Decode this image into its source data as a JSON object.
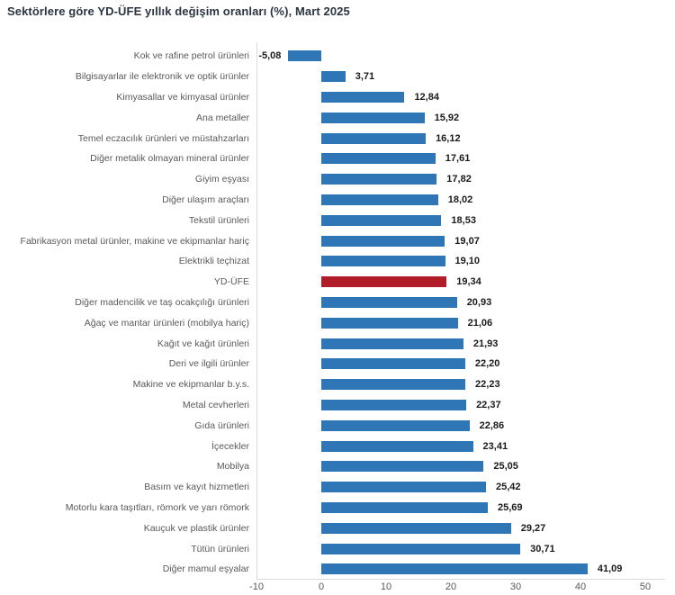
{
  "title": "Sektörlere göre YD-ÜFE yıllık değişim oranları (%), Mart 2025",
  "colors": {
    "bar_blue": "#2E76B5",
    "bar_red": "#B01C28",
    "axis_line": "#D9D9D9",
    "category_text": "#595959",
    "value_text": "#1A1A1A",
    "title_text": "#2B3440"
  },
  "chart_data": {
    "type": "bar",
    "orientation": "horizontal",
    "title": "Sektörlere göre YD-ÜFE yıllık değişim oranları (%), Mart 2025",
    "xlabel": "",
    "ylabel": "",
    "xlim": [
      -10,
      53
    ],
    "x_ticks": [
      -10,
      0,
      10,
      20,
      30,
      40,
      50
    ],
    "grid": false,
    "legend": "none",
    "bar_color": "#2E76B5",
    "highlight_color": "#B01C28",
    "highlight_category": "YD-ÜFE",
    "items": [
      {
        "label": "Kok ve rafine petrol ürünleri",
        "value": -5.08,
        "display": "-5,08",
        "highlight": false
      },
      {
        "label": "Bilgisayarlar ile elektronik ve optik ürünler",
        "value": 3.71,
        "display": "3,71",
        "highlight": false
      },
      {
        "label": "Kimyasallar ve kimyasal ürünler",
        "value": 12.84,
        "display": "12,84",
        "highlight": false
      },
      {
        "label": "Ana metaller",
        "value": 15.92,
        "display": "15,92",
        "highlight": false
      },
      {
        "label": "Temel eczacılık ürünleri ve müstahzarları",
        "value": 16.12,
        "display": "16,12",
        "highlight": false
      },
      {
        "label": "Diğer metalik olmayan mineral ürünler",
        "value": 17.61,
        "display": "17,61",
        "highlight": false
      },
      {
        "label": "Giyim eşyası",
        "value": 17.82,
        "display": "17,82",
        "highlight": false
      },
      {
        "label": "Diğer ulaşım araçları",
        "value": 18.02,
        "display": "18,02",
        "highlight": false
      },
      {
        "label": "Tekstil ürünleri",
        "value": 18.53,
        "display": "18,53",
        "highlight": false
      },
      {
        "label": "Fabrikasyon metal ürünler, makine ve ekipmanlar hariç",
        "value": 19.07,
        "display": "19,07",
        "highlight": false
      },
      {
        "label": "Elektrikli teçhizat",
        "value": 19.1,
        "display": "19,10",
        "highlight": false
      },
      {
        "label": "YD-ÜFE",
        "value": 19.34,
        "display": "19,34",
        "highlight": true
      },
      {
        "label": "Diğer madencilik ve taş ocakçılığı ürünleri",
        "value": 20.93,
        "display": "20,93",
        "highlight": false
      },
      {
        "label": "Ağaç ve mantar ürünleri (mobilya hariç)",
        "value": 21.06,
        "display": "21,06",
        "highlight": false
      },
      {
        "label": "Kağıt ve kağıt ürünleri",
        "value": 21.93,
        "display": "21,93",
        "highlight": false
      },
      {
        "label": "Deri ve ilgili ürünler",
        "value": 22.2,
        "display": "22,20",
        "highlight": false
      },
      {
        "label": "Makine ve ekipmanlar b.y.s.",
        "value": 22.23,
        "display": "22,23",
        "highlight": false
      },
      {
        "label": "Metal cevherleri",
        "value": 22.37,
        "display": "22,37",
        "highlight": false
      },
      {
        "label": "Gıda ürünleri",
        "value": 22.86,
        "display": "22,86",
        "highlight": false
      },
      {
        "label": "İçecekler",
        "value": 23.41,
        "display": "23,41",
        "highlight": false
      },
      {
        "label": "Mobilya",
        "value": 25.05,
        "display": "25,05",
        "highlight": false
      },
      {
        "label": "Basım ve kayıt hizmetleri",
        "value": 25.42,
        "display": "25,42",
        "highlight": false
      },
      {
        "label": "Motorlu kara taşıtları, römork ve yarı römork",
        "value": 25.69,
        "display": "25,69",
        "highlight": false
      },
      {
        "label": "Kauçuk ve plastik ürünler",
        "value": 29.27,
        "display": "29,27",
        "highlight": false
      },
      {
        "label": "Tütün ürünleri",
        "value": 30.71,
        "display": "30,71",
        "highlight": false
      },
      {
        "label": "Diğer mamul eşyalar",
        "value": 41.09,
        "display": "41,09",
        "highlight": false
      }
    ]
  }
}
